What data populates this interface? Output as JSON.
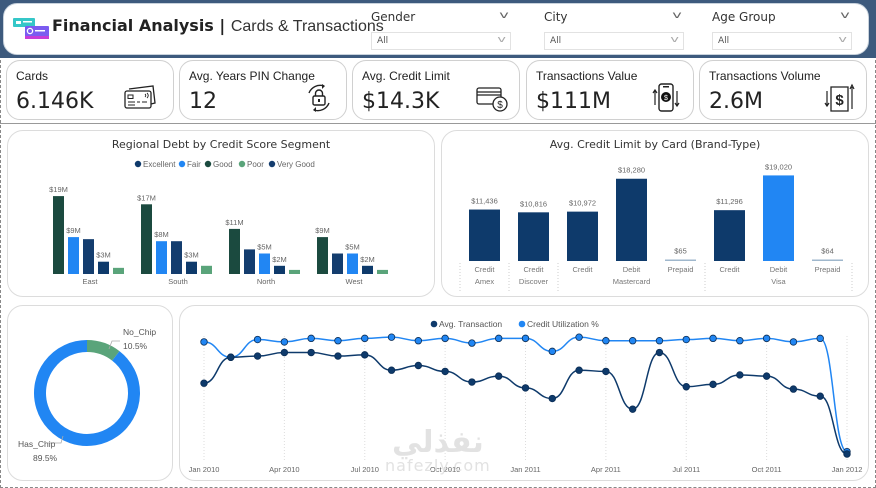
{
  "header": {
    "title_bold": "Financial Analysis",
    "title_sep": " | ",
    "title_sub": "Cards & Transactions",
    "logo_icon": "cards-icon"
  },
  "slicers": [
    {
      "label": "Gender",
      "value": "All"
    },
    {
      "label": "City",
      "value": "All"
    },
    {
      "label": "Age Group",
      "value": "All"
    }
  ],
  "kpis": [
    {
      "label": "Cards",
      "value": "6.146K",
      "icon": "credit-cards-icon"
    },
    {
      "label": "Avg. Years PIN Change",
      "value": "12",
      "icon": "lock-refresh-icon"
    },
    {
      "label": "Avg. Credit Limit",
      "value": "$14.3K",
      "icon": "card-dollar-icon"
    },
    {
      "label": "Transactions Value",
      "value": "$111M",
      "icon": "phone-payment-icon"
    },
    {
      "label": "Transactions Volume",
      "value": "2.6M",
      "icon": "dollar-transfer-icon"
    }
  ],
  "colors": {
    "excellent": "#0e3a6b",
    "fair": "#2186f3",
    "good": "#1b4a3f",
    "poor": "#5aa47a",
    "very_good": "#143d6e",
    "navy": "#0e3a6b",
    "blue": "#2186f3",
    "header_bg": "#3d5a7d"
  },
  "chart_data": [
    {
      "type": "bar",
      "title": "Regional Debt by Credit Score Segment",
      "legend": [
        "Excellent",
        "Fair",
        "Good",
        "Poor",
        "Very Good"
      ],
      "legend_position": "top-center",
      "categories": [
        "East",
        "South",
        "North",
        "West"
      ],
      "unit": "$M",
      "groups": [
        {
          "category": "East",
          "bars": [
            {
              "segment": "Good",
              "value": 19,
              "label": "$19M"
            },
            {
              "segment": "Fair",
              "value": 9,
              "label": "$9M"
            },
            {
              "segment": "Very Good",
              "value": 8.5,
              "label": ""
            },
            {
              "segment": "Excellent",
              "value": 3,
              "label": "$3M"
            },
            {
              "segment": "Poor",
              "value": 1.5,
              "label": ""
            }
          ]
        },
        {
          "category": "South",
          "bars": [
            {
              "segment": "Good",
              "value": 17,
              "label": "$17M"
            },
            {
              "segment": "Fair",
              "value": 8,
              "label": "$8M"
            },
            {
              "segment": "Very Good",
              "value": 8,
              "label": ""
            },
            {
              "segment": "Excellent",
              "value": 3,
              "label": "$3M"
            },
            {
              "segment": "Poor",
              "value": 2,
              "label": ""
            }
          ]
        },
        {
          "category": "North",
          "bars": [
            {
              "segment": "Good",
              "value": 11,
              "label": "$11M"
            },
            {
              "segment": "Very Good",
              "value": 6,
              "label": ""
            },
            {
              "segment": "Fair",
              "value": 5,
              "label": "$5M"
            },
            {
              "segment": "Excellent",
              "value": 2,
              "label": "$2M"
            },
            {
              "segment": "Poor",
              "value": 1,
              "label": ""
            }
          ]
        },
        {
          "category": "West",
          "bars": [
            {
              "segment": "Good",
              "value": 9,
              "label": "$9M"
            },
            {
              "segment": "Very Good",
              "value": 5,
              "label": ""
            },
            {
              "segment": "Fair",
              "value": 5,
              "label": "$5M"
            },
            {
              "segment": "Excellent",
              "value": 2,
              "label": "$2M"
            },
            {
              "segment": "Poor",
              "value": 1,
              "label": ""
            }
          ]
        }
      ],
      "ylim": [
        0,
        20
      ]
    },
    {
      "type": "bar",
      "title": "Avg. Credit Limit by Card (Brand-Type)",
      "categories": [
        {
          "type": "Credit",
          "brand": "Amex",
          "value": 11436,
          "label": "$11,436"
        },
        {
          "type": "Credit",
          "brand": "Discover",
          "value": 10816,
          "label": "$10,816"
        },
        {
          "type": "Credit",
          "brand": "Mastercard",
          "value": 10972,
          "label": "$10,972"
        },
        {
          "type": "Debit",
          "brand": "Mastercard",
          "value": 18280,
          "label": "$18,280"
        },
        {
          "type": "Prepaid",
          "brand": "Mastercard",
          "value": 65,
          "label": "$65"
        },
        {
          "type": "Credit",
          "brand": "Visa",
          "value": 11296,
          "label": "$11,296"
        },
        {
          "type": "Debit",
          "brand": "Visa",
          "value": 19020,
          "label": "$19,020",
          "highlight": true
        },
        {
          "type": "Prepaid",
          "brand": "Visa",
          "value": 64,
          "label": "$64"
        }
      ],
      "brand_groups": [
        {
          "brand": "Amex",
          "types": [
            "Credit"
          ]
        },
        {
          "brand": "Discover",
          "types": [
            "Credit"
          ]
        },
        {
          "brand": "Mastercard",
          "types": [
            "Credit",
            "Debit",
            "Prepaid"
          ]
        },
        {
          "brand": "Visa",
          "types": [
            "Credit",
            "Debit",
            "Prepaid"
          ]
        }
      ],
      "ylim": [
        0,
        20000
      ]
    },
    {
      "type": "pie",
      "subtype": "donut",
      "slices": [
        {
          "label": "No_Chip",
          "value": 10.5,
          "pct_label": "10.5%",
          "color": "#5aa47a"
        },
        {
          "label": "Has_Chip",
          "value": 89.5,
          "pct_label": "89.5%",
          "color": "#2186f3"
        }
      ]
    },
    {
      "type": "line",
      "legend": [
        "Avg. Transaction",
        "Credit Utilization %"
      ],
      "legend_position": "top-center",
      "x_ticks": [
        "Jan 2010",
        "Apr 2010",
        "Jul 2010",
        "Oct 2010",
        "Jan 2011",
        "Apr 2011",
        "Jul 2011",
        "Oct 2011",
        "Jan 2012"
      ],
      "x_tick_indices": [
        0,
        3,
        6,
        9,
        12,
        15,
        18,
        21,
        24
      ],
      "y_axis_visible": false,
      "ylim": [
        0,
        100
      ],
      "series": [
        {
          "name": "Avg. Transaction",
          "color": "#0e3a6b",
          "values": [
            60,
            82,
            83,
            86,
            86,
            83,
            84,
            71,
            75,
            70,
            61,
            66,
            56,
            47,
            71,
            70,
            38,
            86,
            57,
            59,
            67,
            66,
            55,
            49,
            0
          ]
        },
        {
          "name": "Credit Utilization %",
          "color": "#2186f3",
          "values": [
            95,
            82,
            97,
            95,
            98,
            96,
            98,
            99,
            96,
            98,
            94,
            98,
            98,
            87,
            99,
            96,
            96,
            96,
            97,
            98,
            96,
            98,
            95,
            98,
            2
          ]
        }
      ]
    }
  ],
  "watermark": {
    "arabic": "نفذلي",
    "latin": "nafezly.com"
  }
}
